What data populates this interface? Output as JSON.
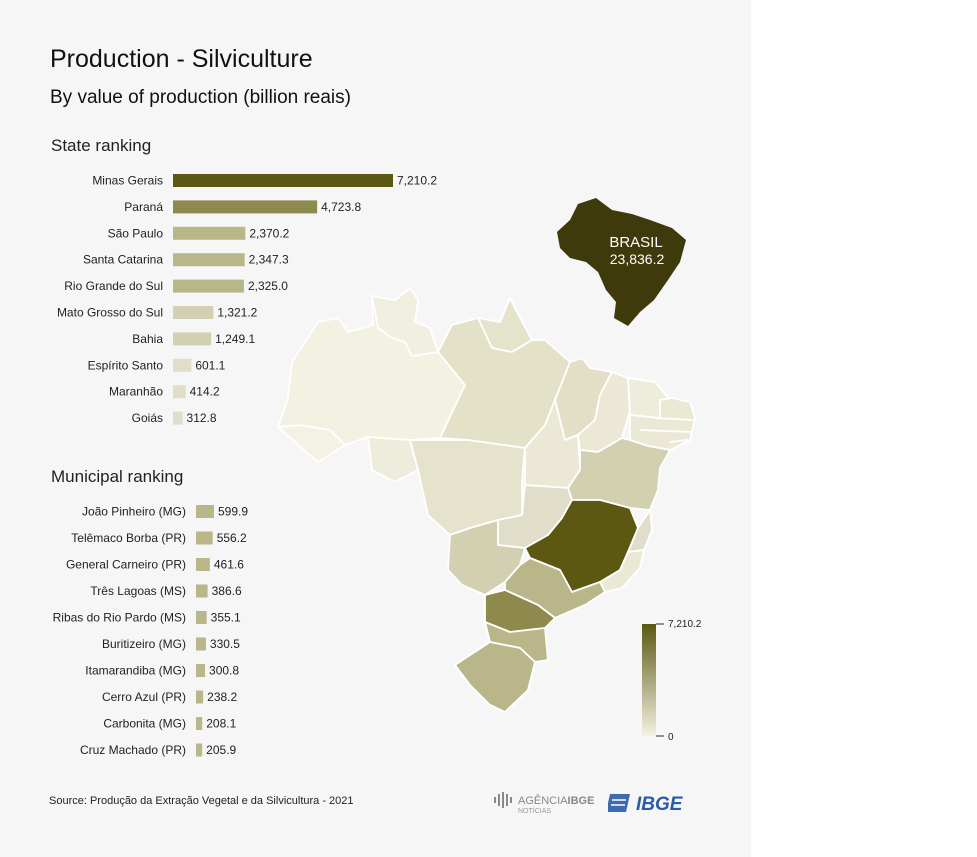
{
  "title": "Production - Silviculture",
  "subtitle": "By value of production (billion reais)",
  "source": "Source: Produção da Extração Vegetal e da Silvicultura - 2021",
  "brasil": {
    "label": "BRASIL",
    "value": "23,836.2"
  },
  "logos": {
    "agencia_main": "AGÊNCIA",
    "agencia_bold": "IBGE",
    "agencia_sub": "NOTÍCIAS",
    "ibge": "IBGE"
  },
  "colors": {
    "dark": "#5c5812",
    "light": "#f3f1e2"
  },
  "chart_data": [
    {
      "type": "bar",
      "orientation": "horizontal",
      "title": "State ranking",
      "categories": [
        "Minas Gerais",
        "Paraná",
        "São Paulo",
        "Santa Catarina",
        "Rio Grande do Sul",
        "Mato Grosso do Sul",
        "Bahia",
        "Espírito Santo",
        "Maranhão",
        "Goiás"
      ],
      "values": [
        7210.2,
        4723.8,
        2370.2,
        2347.3,
        2325.0,
        1321.2,
        1249.1,
        601.1,
        414.2,
        312.8
      ],
      "labels": [
        "7,210.2",
        "4,723.8",
        "2,370.2",
        "2,347.3",
        "2,325.0",
        "1,321.2",
        "1,249.1",
        "601.1",
        "414.2",
        "312.8"
      ],
      "colors": [
        "#5c5812",
        "#8e8a4e",
        "#b9b68a",
        "#b9b68a",
        "#b9b68a",
        "#d3d0b2",
        "#d3d0b2",
        "#e0ddc8",
        "#e0ddc8",
        "#e0ddc8"
      ]
    },
    {
      "type": "bar",
      "orientation": "horizontal",
      "title": "Municipal ranking",
      "categories": [
        "João Pinheiro (MG)",
        "Telêmaco Borba (PR)",
        "General Carneiro (PR)",
        "Três Lagoas (MS)",
        "Ribas do Rio Pardo (MS)",
        "Buritizeiro (MG)",
        "Itamarandiba (MG)",
        "Cerro Azul (PR)",
        "Carbonita (MG)",
        "Cruz Machado (PR)"
      ],
      "values": [
        599.9,
        556.2,
        461.6,
        386.6,
        355.1,
        330.5,
        300.8,
        238.2,
        208.1,
        205.9
      ],
      "labels": [
        "599.9",
        "556.2",
        "461.6",
        "386.6",
        "355.1",
        "330.5",
        "300.8",
        "238.2",
        "208.1",
        "205.9"
      ],
      "color": "#b9b68a"
    },
    {
      "type": "heatmap",
      "title": "",
      "legend": {
        "max_label": "7,210.2",
        "min_label": "0",
        "max": 7210.2,
        "min": 0,
        "placement": "bottom-right"
      },
      "regions": [
        {
          "name": "Minas Gerais",
          "value": 7210.2
        },
        {
          "name": "Paraná",
          "value": 4723.8
        },
        {
          "name": "São Paulo",
          "value": 2370.2
        },
        {
          "name": "Santa Catarina",
          "value": 2347.3
        },
        {
          "name": "Rio Grande do Sul",
          "value": 2325.0
        },
        {
          "name": "Mato Grosso do Sul",
          "value": 1321.2
        },
        {
          "name": "Bahia",
          "value": 1249.1
        },
        {
          "name": "Espírito Santo",
          "value": 601.1
        },
        {
          "name": "Maranhão",
          "value": 414.2
        },
        {
          "name": "Goiás",
          "value": 312.8
        }
      ]
    }
  ]
}
